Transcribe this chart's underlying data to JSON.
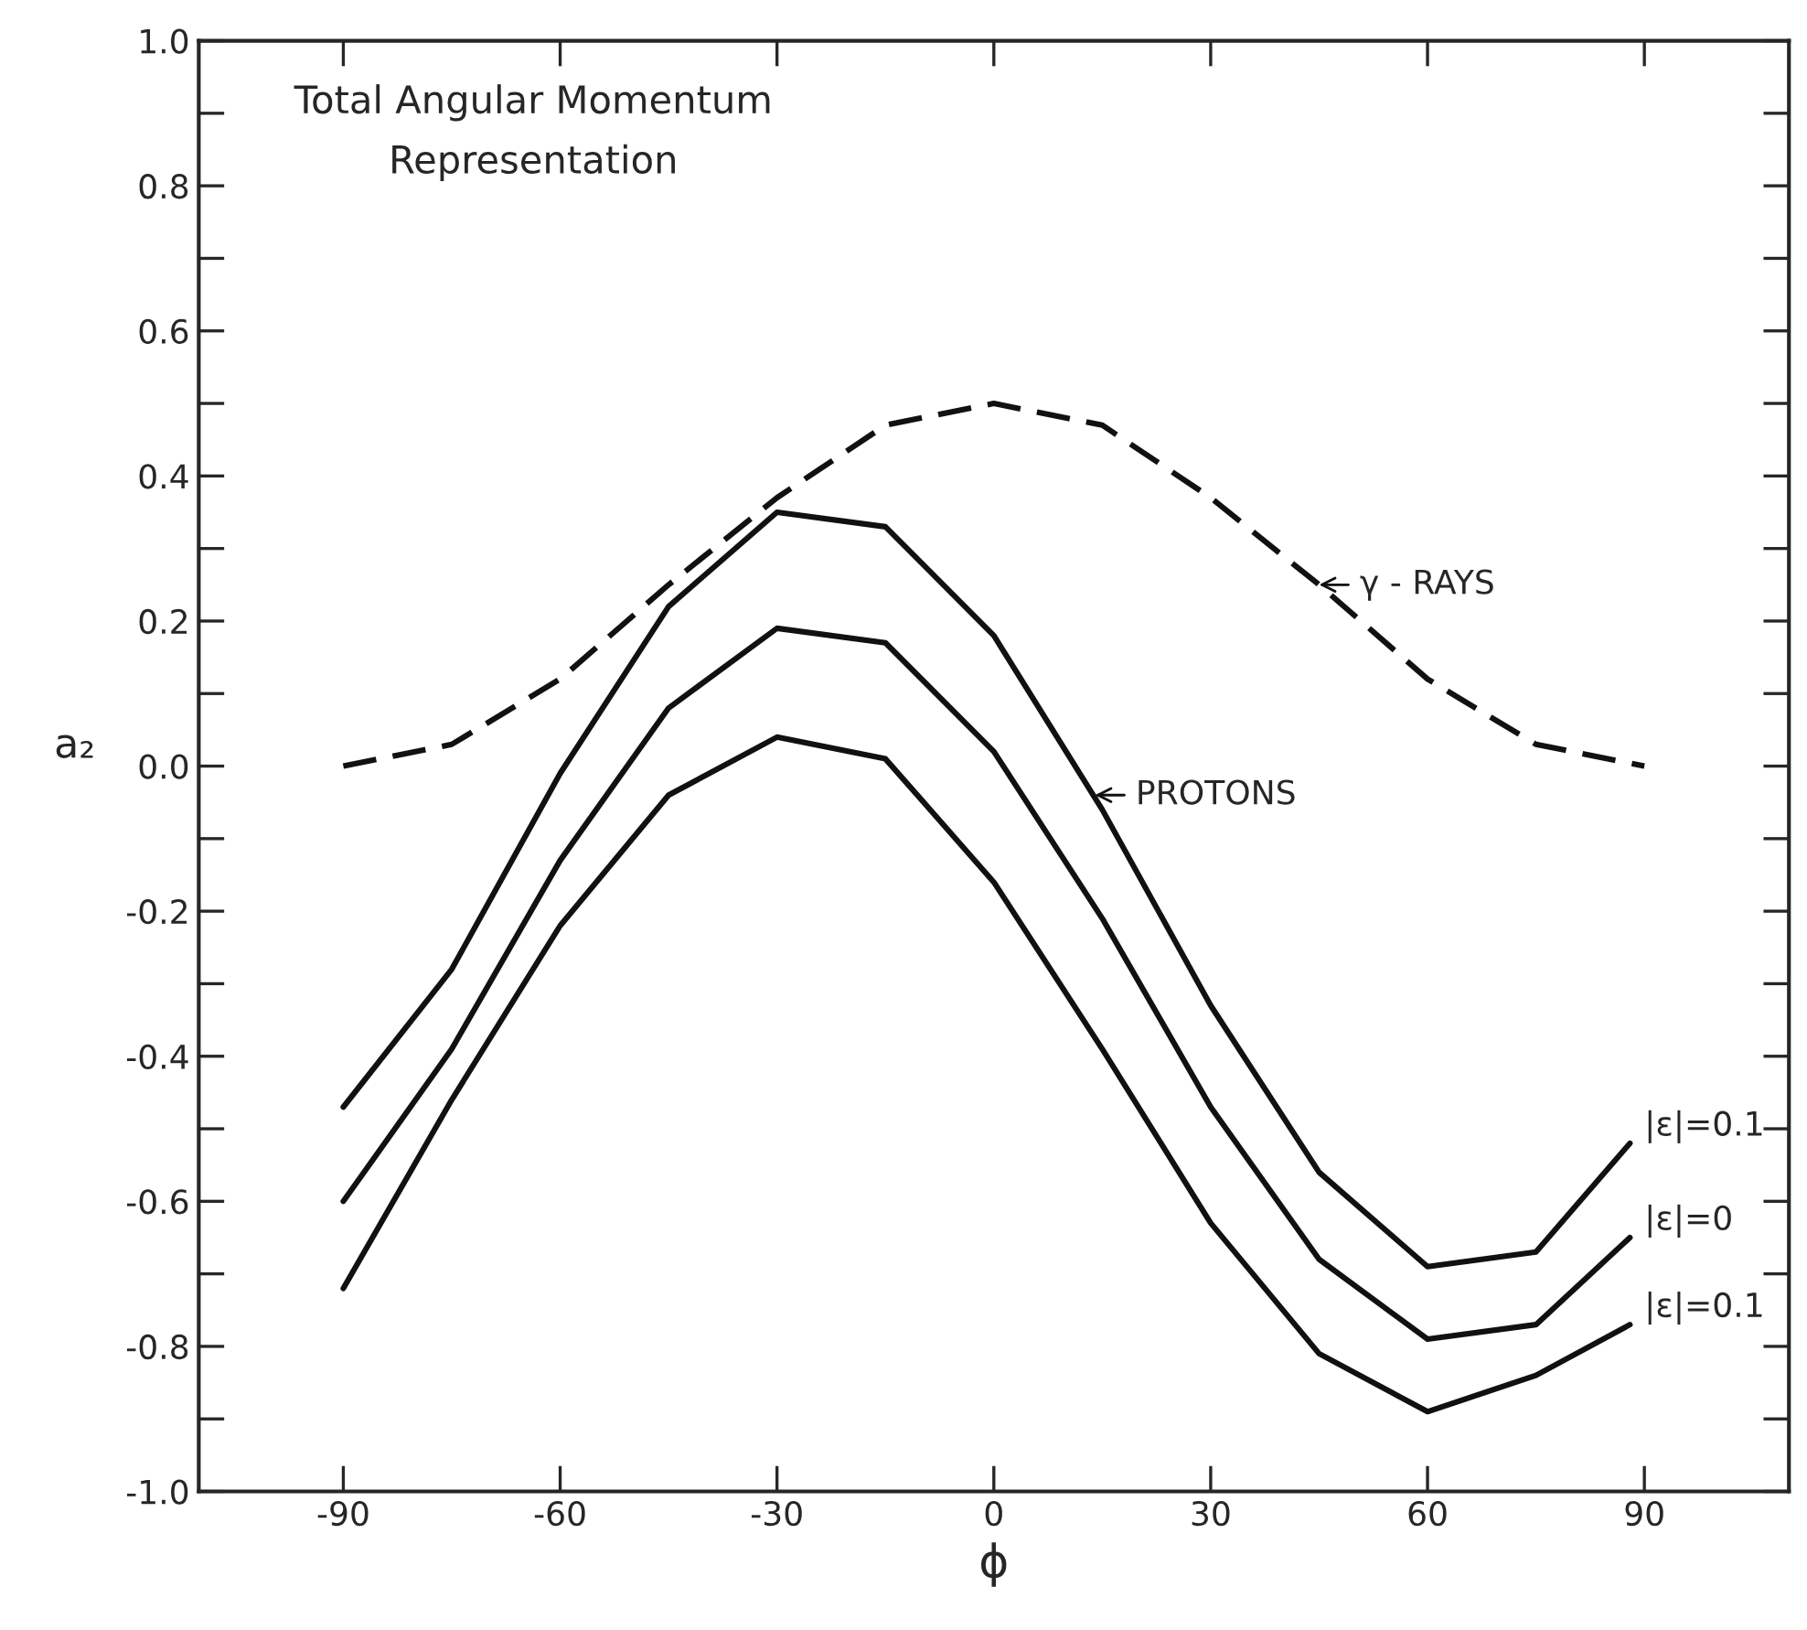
{
  "chart_data": {
    "type": "line",
    "title": "Total Angular Momentum\nRepresentation",
    "xlabel": "ϕ",
    "ylabel": "a₂",
    "x": [
      -90,
      -75,
      -60,
      -45,
      -30,
      -15,
      0,
      15,
      30,
      45,
      60,
      75,
      88
    ],
    "series": [
      {
        "name": "|ε|=0.1",
        "color": "#111111",
        "line_style": "solid",
        "values": [
          -0.47,
          -0.28,
          -0.01,
          0.22,
          0.35,
          0.33,
          0.18,
          -0.06,
          -0.33,
          -0.56,
          -0.69,
          -0.67,
          -0.52
        ]
      },
      {
        "name": "|ε|=0",
        "color": "#111111",
        "line_style": "solid",
        "values": [
          -0.6,
          -0.39,
          -0.13,
          0.08,
          0.19,
          0.17,
          0.02,
          -0.21,
          -0.47,
          -0.68,
          -0.79,
          -0.77,
          -0.65
        ]
      },
      {
        "name": "|ε|=0.1",
        "color": "#111111",
        "line_style": "solid",
        "values": [
          -0.72,
          -0.46,
          -0.22,
          -0.04,
          0.04,
          0.01,
          -0.16,
          -0.39,
          -0.63,
          -0.81,
          -0.89,
          -0.84,
          -0.77
        ]
      },
      {
        "color": "#111111",
        "line_style": "dashed",
        "x": [
          -90,
          -75,
          -60,
          -45,
          -30,
          -15,
          0,
          15,
          30,
          45,
          60,
          75,
          90
        ],
        "values": [
          0,
          0.03,
          0.12,
          0.25,
          0.37,
          0.47,
          0.5,
          0.47,
          0.37,
          0.25,
          0.12,
          0.03,
          0
        ]
      }
    ],
    "annotations": [
      {
        "text": "γ - RAYS",
        "x": 45,
        "y": 0.25
      },
      {
        "text": "PROTONS",
        "x": 14,
        "y": -0.04
      }
    ],
    "xlim": [
      -110,
      110
    ],
    "ylim": [
      -1.0,
      1.0
    ],
    "xticks": [
      -90,
      -60,
      -30,
      {
        "value": 0,
        "label": "0"
      },
      30,
      60,
      90
    ],
    "yticks": [
      {
        "value": -1.0,
        "label": "-1.0"
      },
      {
        "value": -0.9,
        "label": null
      },
      {
        "value": -0.8,
        "label": "-0.8"
      },
      {
        "value": -0.7,
        "label": null
      },
      {
        "value": -0.6,
        "label": "-0.6"
      },
      {
        "value": -0.5,
        "label": null
      },
      {
        "value": -0.4,
        "label": "-0.4"
      },
      {
        "value": -0.3,
        "label": null
      },
      {
        "value": -0.2,
        "label": "-0.2"
      },
      {
        "value": -0.1,
        "label": null
      },
      {
        "value": 0.0,
        "label": "0.0"
      },
      {
        "value": 0.1,
        "label": null
      },
      {
        "value": 0.2,
        "label": "0.2"
      },
      {
        "value": 0.3,
        "label": null
      },
      {
        "value": 0.4,
        "label": "0.4"
      },
      {
        "value": 0.5,
        "label": null
      },
      {
        "value": 0.6,
        "label": "0.6"
      },
      {
        "value": 0.7,
        "label": null
      },
      {
        "value": 0.8,
        "label": "0.8"
      },
      {
        "value": 0.9,
        "label": null
      },
      {
        "value": 1.0,
        "label": "1.0"
      }
    ],
    "grid": false,
    "legend": false,
    "marker": "none"
  }
}
